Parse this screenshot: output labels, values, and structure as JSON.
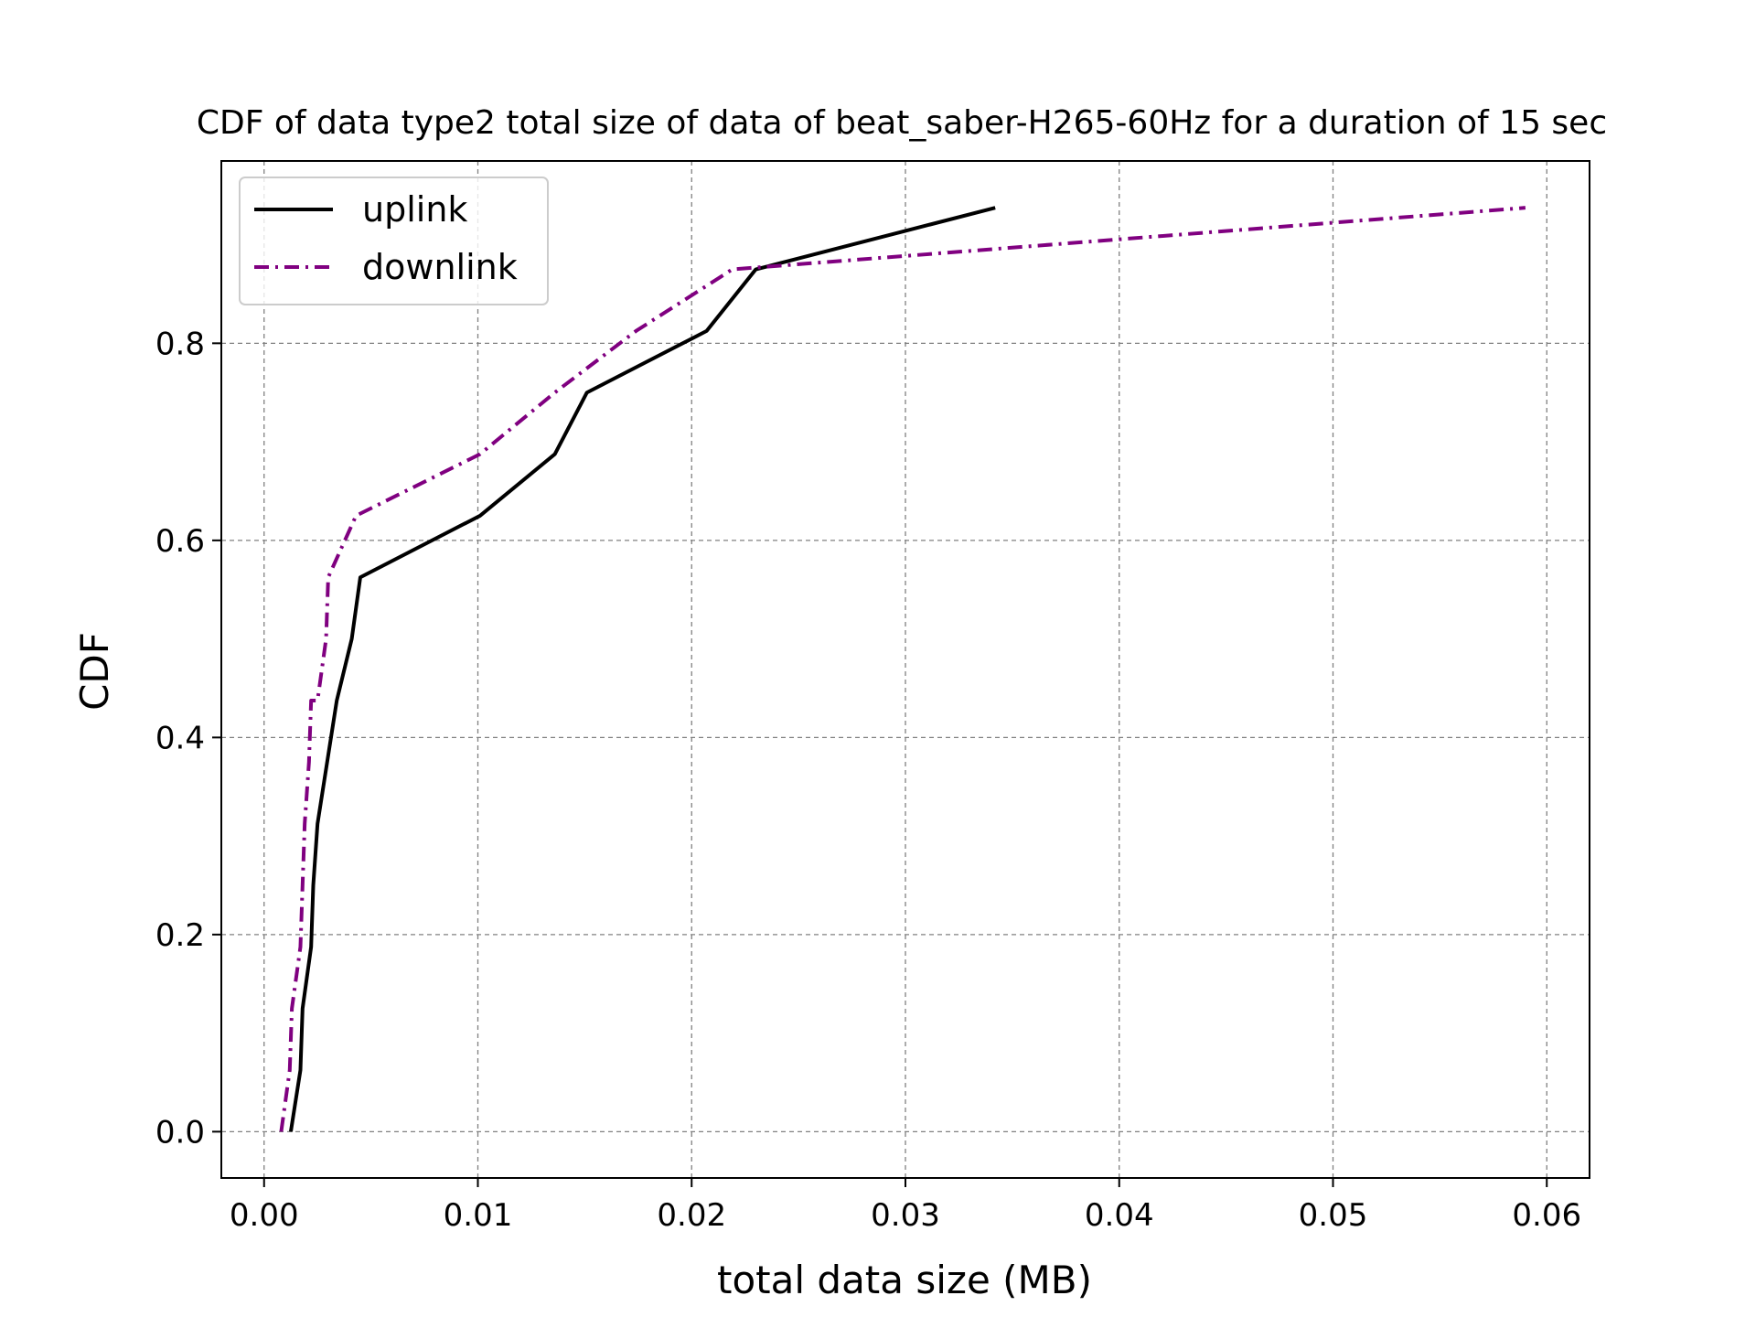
{
  "chart_data": {
    "type": "line",
    "title": "CDF of data type2 total size of data of beat_saber-H265-60Hz for a duration of 15 sec",
    "xlabel": "total data size (MB)",
    "ylabel": "CDF",
    "xlim": [
      -0.002,
      0.062
    ],
    "ylim": [
      -0.047,
      0.985
    ],
    "xticks": [
      0.0,
      0.01,
      0.02,
      0.03,
      0.04,
      0.05,
      0.06
    ],
    "xtick_labels": [
      "0.00",
      "0.01",
      "0.02",
      "0.03",
      "0.04",
      "0.05",
      "0.06"
    ],
    "yticks": [
      0.0,
      0.2,
      0.4,
      0.6,
      0.8
    ],
    "ytick_labels": [
      "0.0",
      "0.2",
      "0.4",
      "0.6",
      "0.8"
    ],
    "grid": true,
    "legend_position": "top-left",
    "series": [
      {
        "name": "uplink",
        "color": "#000000",
        "style": "solid",
        "x": [
          0.00125,
          0.0017,
          0.0018,
          0.0022,
          0.0023,
          0.0025,
          0.0034,
          0.0041,
          0.0045,
          0.0101,
          0.0136,
          0.0151,
          0.0207,
          0.023,
          0.0342
        ],
        "y": [
          0.0,
          0.0625,
          0.125,
          0.1875,
          0.25,
          0.3125,
          0.4375,
          0.5,
          0.5625,
          0.625,
          0.6875,
          0.75,
          0.8125,
          0.875,
          0.9375
        ]
      },
      {
        "name": "downlink",
        "color": "#800080",
        "style": "dashdot",
        "x": [
          0.0008,
          0.0012,
          0.0013,
          0.0017,
          0.0018,
          0.0019,
          0.0021,
          0.0022,
          0.0025,
          0.0029,
          0.003,
          0.0043,
          0.0101,
          0.0136,
          0.0174,
          0.0219,
          0.059
        ],
        "y": [
          0.0,
          0.0625,
          0.125,
          0.1875,
          0.25,
          0.3125,
          0.375,
          0.4375,
          0.4375,
          0.5,
          0.5625,
          0.625,
          0.6875,
          0.75,
          0.8125,
          0.875,
          0.9375
        ]
      }
    ]
  }
}
